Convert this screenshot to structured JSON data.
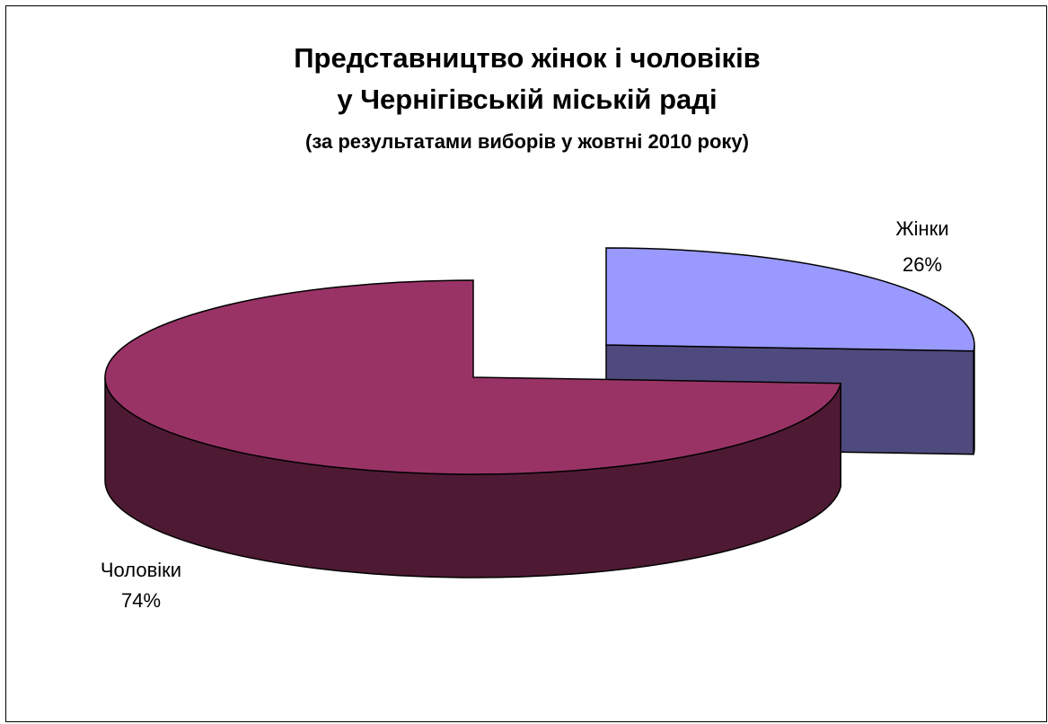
{
  "chart_data": {
    "type": "pie",
    "title": "Представництво жінок і чоловіків",
    "title_line2": "у Чернігівській міській раді",
    "subtitle": "(за результатами виборів у жовтні 2010 року)",
    "slices": [
      {
        "name": "Жінки",
        "value": 26,
        "label": "26%",
        "top_color": "#9999FF",
        "side_color": "#4F4A7D"
      },
      {
        "name": "Чоловіки",
        "value": 74,
        "label": "74%",
        "top_color": "#993366",
        "side_color": "#4E1A33"
      }
    ],
    "style": "3d-exploded"
  }
}
